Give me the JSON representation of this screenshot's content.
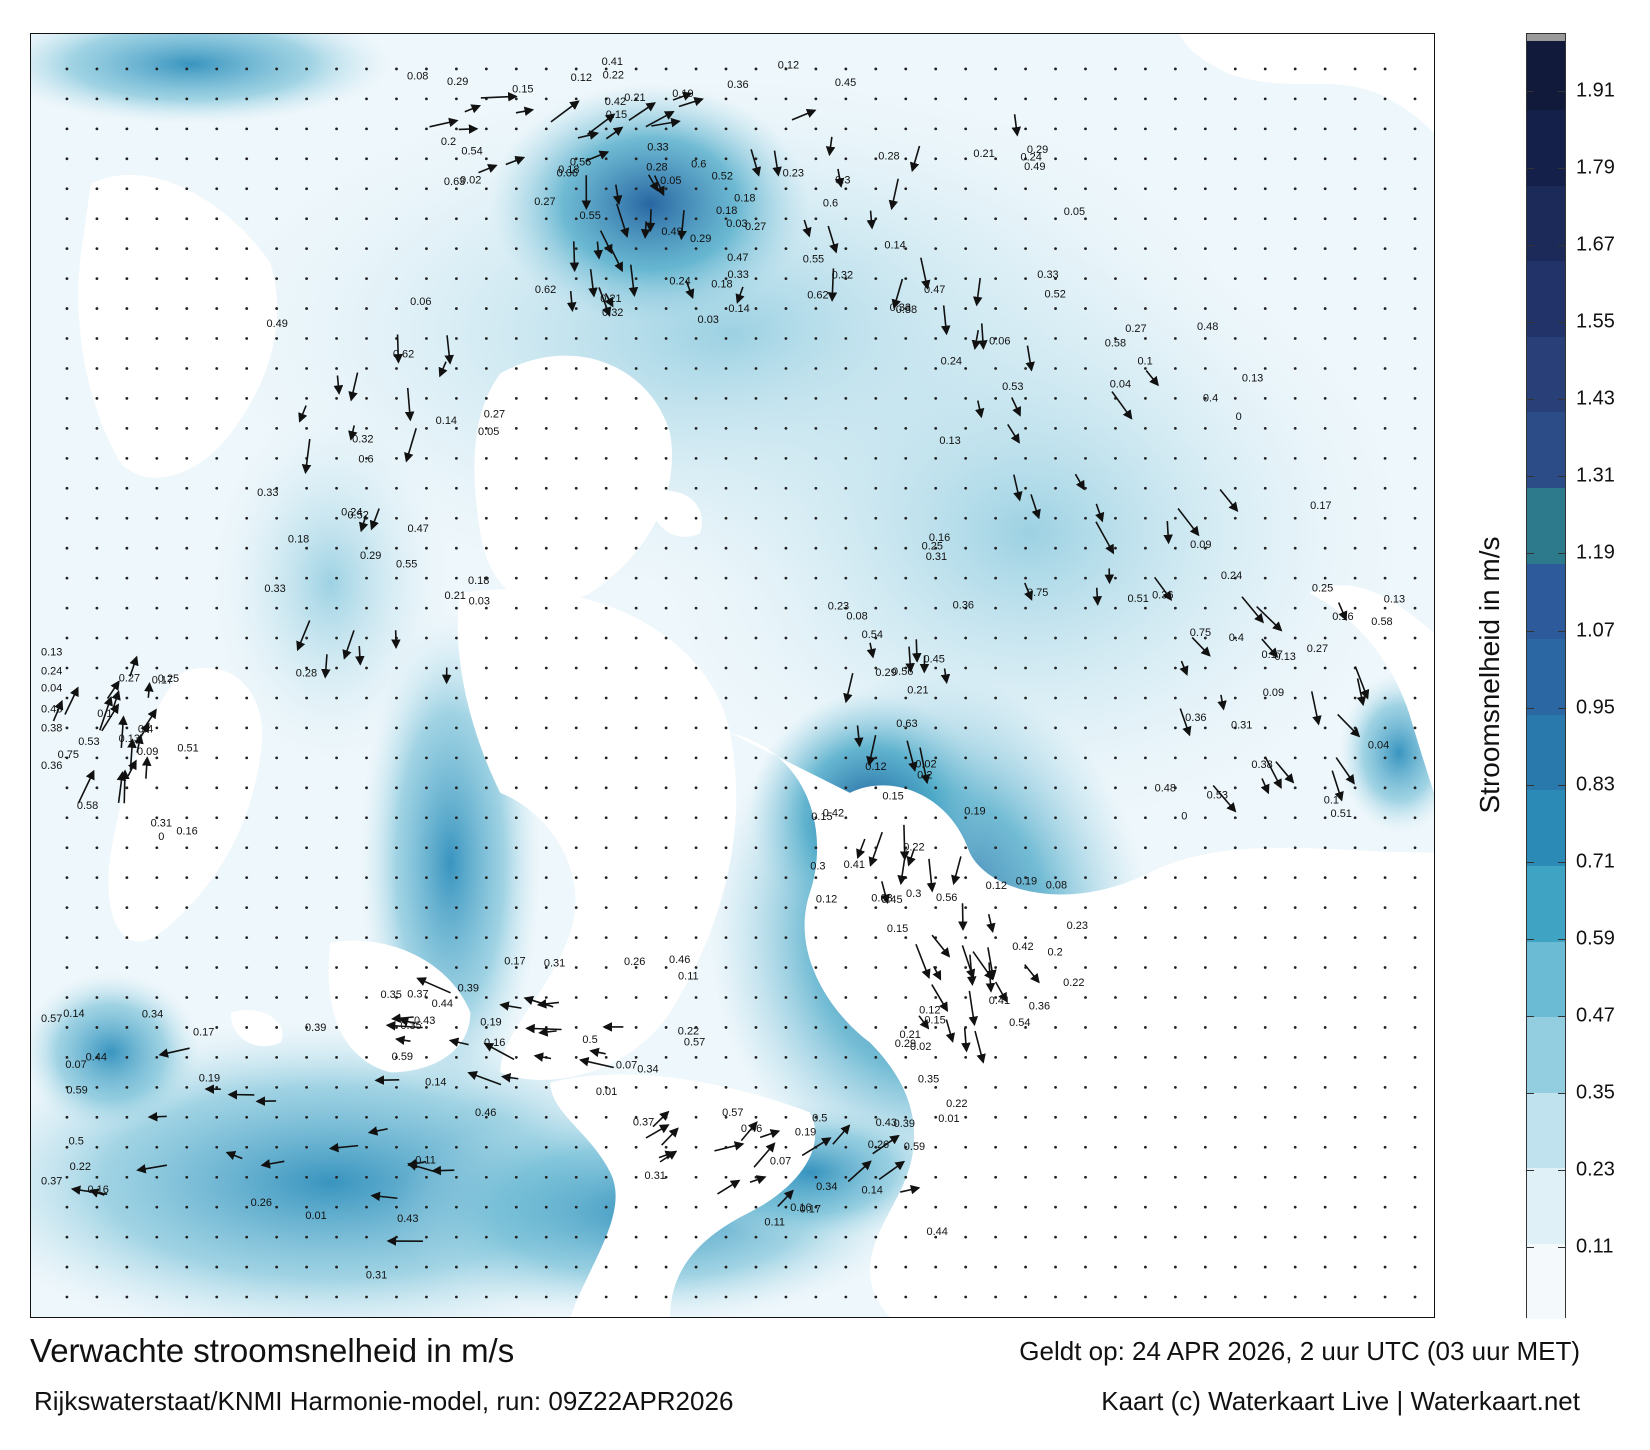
{
  "title": "Verwachte stroomsnelheid in m/s",
  "run_info": "Rijkswaterstaat/KNMI Harmonie-model, run: 09Z22APR2026",
  "valid_time": "Geldt op: 24 APR 2026, 2 uur UTC (03 uur MET)",
  "credit": "Kaart (c) Waterkaart Live | Waterkaart.net",
  "colorbar": {
    "label": "Stroomsnelheid in m/s",
    "min": 0,
    "max": 2.0,
    "ticks": [
      "0.11",
      "0.23",
      "0.35",
      "0.47",
      "0.59",
      "0.71",
      "0.83",
      "0.95",
      "1.07",
      "1.19",
      "1.31",
      "1.43",
      "1.55",
      "1.67",
      "1.79",
      "1.91"
    ],
    "colors": [
      "#f4fafc",
      "#dff0f6",
      "#bfe2ee",
      "#93cde0",
      "#6cbbd4",
      "#3fa3c4",
      "#2b8bb6",
      "#2979ad",
      "#2b67a2",
      "#2d5a9b",
      "#2d7a8c",
      "#2b4c86",
      "#283f78",
      "#22336a",
      "#1c2a5a",
      "#15204a",
      "#111a3a"
    ]
  },
  "map_labels": [
    {
      "t": "0.12"
    },
    {
      "t": "0.14"
    },
    {
      "t": "0.21"
    },
    {
      "t": "0.16"
    },
    {
      "t": "0.2"
    },
    {
      "t": "0.17"
    },
    {
      "t": "0.18"
    },
    {
      "t": "0.13"
    },
    {
      "t": "0.15"
    },
    {
      "t": "0.11"
    },
    {
      "t": "0.03"
    },
    {
      "t": "0.04"
    },
    {
      "t": "0.19"
    },
    {
      "t": "0.43"
    },
    {
      "t": "0.52"
    },
    {
      "t": "0.58"
    },
    {
      "t": "0.41"
    },
    {
      "t": "0.39"
    },
    {
      "t": "0.27"
    },
    {
      "t": "0.24"
    },
    {
      "t": "0.02"
    },
    {
      "t": "0.01"
    },
    {
      "t": "0.05"
    },
    {
      "t": "0.09"
    },
    {
      "t": "0.08"
    },
    {
      "t": "0.07"
    },
    {
      "t": "0.06"
    },
    {
      "t": "0.1"
    },
    {
      "t": "0.22"
    },
    {
      "t": "0.26"
    },
    {
      "t": "0.29"
    },
    {
      "t": "0.31"
    },
    {
      "t": "0.36"
    },
    {
      "t": "0.37"
    },
    {
      "t": "0.47"
    },
    {
      "t": "0.51"
    },
    {
      "t": "0.54"
    },
    {
      "t": "0.59"
    },
    {
      "t": "0.62"
    },
    {
      "t": "0.75"
    },
    {
      "t": "0.63"
    },
    {
      "t": "0.57"
    },
    {
      "t": "0.55"
    },
    {
      "t": "0.48"
    },
    {
      "t": "0.45"
    },
    {
      "t": "0.44"
    },
    {
      "t": "0.33"
    },
    {
      "t": "0.25"
    },
    {
      "t": "0.3"
    },
    {
      "t": "0.35"
    },
    {
      "t": "0.28"
    },
    {
      "t": "0.4"
    },
    {
      "t": "0.42"
    },
    {
      "t": "0.34"
    },
    {
      "t": "0.32"
    },
    {
      "t": "0.38"
    },
    {
      "t": "0.23"
    },
    {
      "t": "0.46"
    },
    {
      "t": "0.49"
    },
    {
      "t": "0.53"
    },
    {
      "t": "0.56"
    },
    {
      "t": "0.5"
    },
    {
      "t": "0.6"
    },
    {
      "t": "0"
    },
    {
      "t": "0.15"
    },
    {
      "t": "0.16"
    },
    {
      "t": "0.18"
    },
    {
      "t": "0.17"
    },
    {
      "t": "0.12"
    },
    {
      "t": "0.19"
    },
    {
      "t": "0.14"
    },
    {
      "t": "0.13"
    },
    {
      "t": "0.21"
    },
    {
      "t": "0.22"
    },
    {
      "t": "0.24"
    },
    {
      "t": "0.27"
    },
    {
      "t": "0.29"
    },
    {
      "t": "0.31"
    },
    {
      "t": "0.33"
    },
    {
      "t": "0.36"
    }
  ]
}
